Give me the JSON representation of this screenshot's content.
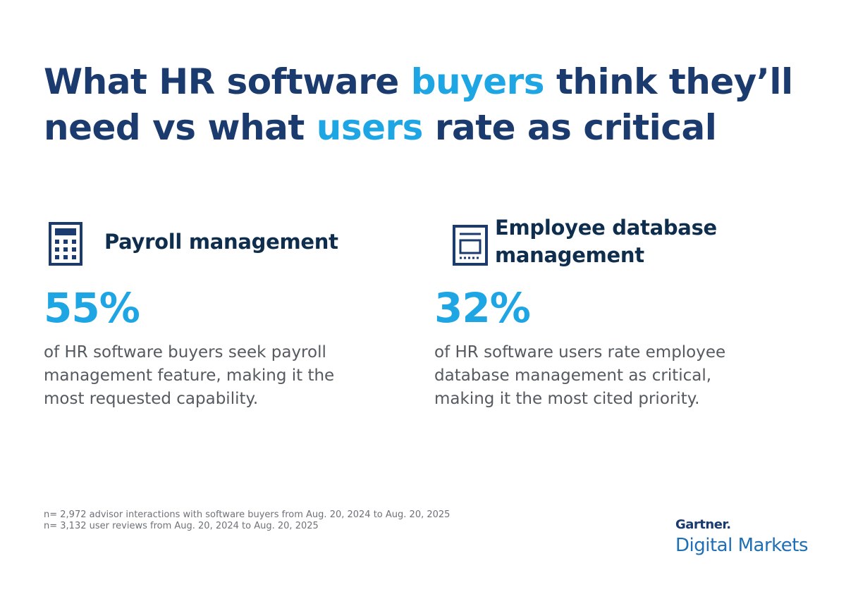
{
  "header": {
    "title_lines": [
      [
        "What HR software ",
        "buyers",
        " think they’ll"
      ],
      [
        "need vs what ",
        "users",
        " rate as critical"
      ]
    ]
  },
  "stats": [
    {
      "heading": "Payroll management",
      "value": "55%",
      "description": "of HR software buyers seek payroll management feature, making it the most requested capability."
    },
    {
      "heading": "Employee database management",
      "value": "32%",
      "description": "of HR software users rate employee database management as critical, making it the most cited priority."
    }
  ],
  "footnotes": [
    "n= 2,972 advisor interactions with software buyers from Aug. 20, 2024 to Aug. 20, 2025",
    "n= 3,132 user reviews from Aug. 20, 2024 to Aug. 20, 2025"
  ],
  "logo": {
    "brand": "Gartner.",
    "product": "Digital Markets"
  }
}
